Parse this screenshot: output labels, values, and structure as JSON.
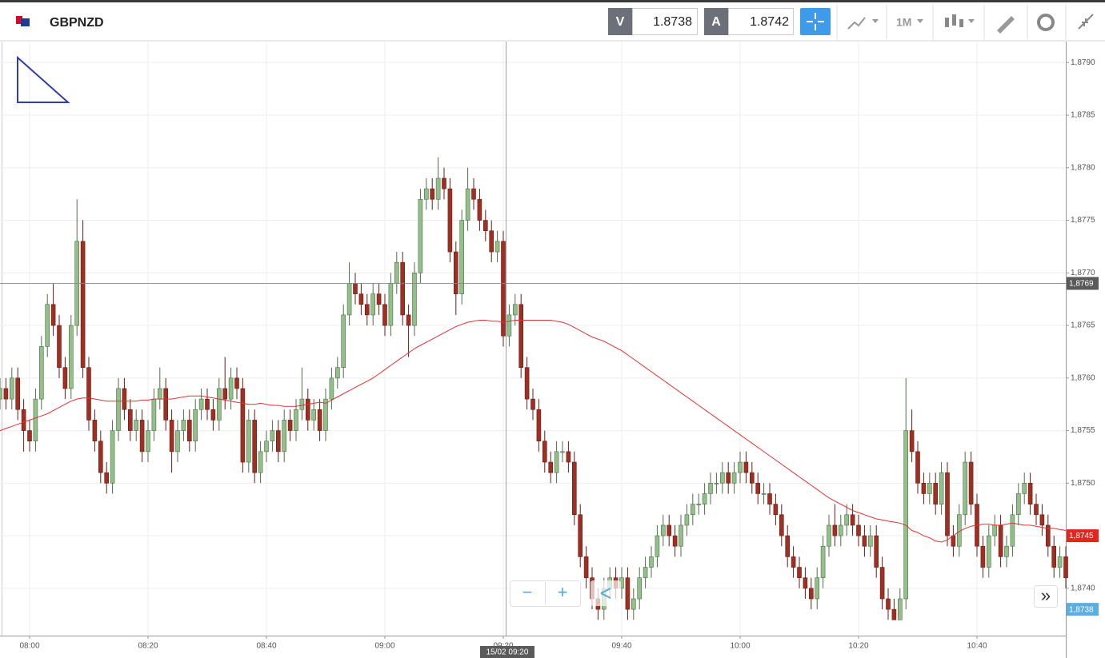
{
  "header": {
    "symbol": "GBPNZD",
    "bid_label": "V",
    "bid": "1.8738",
    "ask_label": "A",
    "ask": "1.8742",
    "timeframe": "1M"
  },
  "controls": {
    "zoom_out": "−",
    "zoom_in": "+",
    "expand": "»"
  },
  "chart_data": {
    "type": "candlestick",
    "categories": [
      null,
      null,
      null,
      null,
      null,
      "08:00",
      null,
      null,
      null,
      null,
      null,
      null,
      null,
      null,
      null,
      null,
      null,
      null,
      null,
      null,
      null,
      null,
      null,
      null,
      null,
      "08:20",
      null,
      null,
      null,
      null,
      null,
      null,
      null,
      null,
      null,
      null,
      null,
      null,
      null,
      null,
      null,
      null,
      null,
      null,
      null,
      "08:40",
      null,
      null,
      null,
      null,
      null,
      null,
      null,
      null,
      null,
      null,
      null,
      null,
      null,
      null,
      null,
      null,
      null,
      null,
      null,
      "09:00",
      null,
      null,
      null,
      null,
      null,
      null,
      null,
      null,
      null,
      null,
      null,
      null,
      null,
      null,
      null,
      null,
      null,
      null,
      null,
      "09:20",
      null,
      null,
      null,
      null,
      null,
      null,
      null,
      null,
      null,
      null,
      null,
      null,
      null,
      null,
      null,
      null,
      null,
      null,
      null,
      "09:40",
      null,
      null,
      null,
      null,
      null,
      null,
      null,
      null,
      null,
      null,
      null,
      null,
      null,
      null,
      null,
      null,
      null,
      null,
      null,
      "10:00",
      null,
      null,
      null,
      null,
      null,
      null,
      null,
      null,
      null,
      null,
      null,
      null,
      null,
      null,
      null,
      null,
      null,
      null,
      null,
      "10:20",
      null,
      null,
      null,
      null,
      null,
      null,
      null,
      null,
      null,
      null,
      null,
      null,
      null,
      null,
      null,
      null,
      null,
      null,
      null,
      "10:40",
      null,
      null,
      null,
      null,
      null,
      null,
      null,
      null,
      null,
      null,
      null,
      null,
      null,
      null,
      null
    ],
    "open": [
      1.8758,
      1.8759,
      1.8758,
      1.876,
      1.8757,
      1.8755,
      1.8754,
      1.8758,
      1.8763,
      1.8767,
      1.8765,
      1.8761,
      1.8759,
      1.8765,
      1.8773,
      1.8761,
      1.8756,
      1.8754,
      1.8751,
      1.875,
      1.8755,
      1.8759,
      1.8757,
      1.8755,
      1.8756,
      1.8753,
      1.8755,
      1.8758,
      1.8759,
      1.8756,
      1.8753,
      1.8755,
      1.8756,
      1.8754,
      1.8757,
      1.8758,
      1.8757,
      1.8756,
      1.8759,
      1.8758,
      1.876,
      1.8759,
      1.8752,
      1.8756,
      1.8751,
      1.8753,
      1.8754,
      1.8755,
      1.8753,
      1.8756,
      1.8755,
      1.8757,
      1.8758,
      1.8756,
      1.8757,
      1.8755,
      1.8758,
      1.876,
      1.8761,
      1.8766,
      1.8769,
      1.8768,
      1.8767,
      1.8766,
      1.8768,
      1.8767,
      1.8765,
      1.8769,
      1.8771,
      1.8766,
      1.8765,
      1.877,
      1.8777,
      1.8778,
      1.8777,
      1.8779,
      1.8778,
      1.8772,
      1.8768,
      1.8775,
      1.8778,
      1.8777,
      1.8775,
      1.8774,
      1.8772,
      1.8773,
      1.8764,
      1.8766,
      1.8767,
      1.8761,
      1.8758,
      1.8757,
      1.8754,
      1.8752,
      1.8751,
      1.8753,
      1.8753,
      1.8752,
      1.8747,
      1.8743,
      1.8741,
      1.8739,
      1.8738,
      1.874,
      1.8741,
      1.874,
      1.8741,
      1.8738,
      1.8739,
      1.8741,
      1.8742,
      1.8743,
      1.8745,
      1.8746,
      1.8745,
      1.8744,
      1.8746,
      1.8747,
      1.8748,
      1.8748,
      1.8749,
      1.875,
      1.875,
      1.8751,
      1.875,
      1.8751,
      1.8752,
      1.8751,
      1.875,
      1.8749,
      1.8749,
      1.8748,
      1.8747,
      1.8745,
      1.8743,
      1.8742,
      1.8741,
      1.874,
      1.8739,
      1.8741,
      1.8744,
      1.8746,
      1.8745,
      1.8746,
      1.8747,
      1.8746,
      1.8745,
      1.8744,
      1.8745,
      1.8742,
      1.8739,
      1.8738,
      1.8737,
      1.8739,
      1.8755,
      1.8753,
      1.875,
      1.8749,
      1.875,
      1.8748,
      1.8751,
      1.8745,
      1.8744,
      1.8747,
      1.8752,
      1.8748,
      1.8744,
      1.8742,
      1.8745,
      1.8746,
      1.8743,
      1.8744,
      1.8747,
      1.8749,
      1.875,
      1.8748,
      1.8747,
      1.8746,
      1.8744,
      1.8742,
      1.8743
    ],
    "high": [
      1.876,
      1.876,
      1.8761,
      1.8761,
      1.8758,
      1.8756,
      1.8759,
      1.8764,
      1.8768,
      1.8769,
      1.8766,
      1.8762,
      1.8766,
      1.8777,
      1.8775,
      1.8762,
      1.8757,
      1.8755,
      1.8752,
      1.8756,
      1.876,
      1.876,
      1.8758,
      1.8757,
      1.8757,
      1.8756,
      1.8759,
      1.8761,
      1.876,
      1.8757,
      1.8756,
      1.8757,
      1.8757,
      1.8758,
      1.8759,
      1.8759,
      1.8758,
      1.876,
      1.8762,
      1.8761,
      1.8761,
      1.876,
      1.8757,
      1.8757,
      1.8754,
      1.8755,
      1.8756,
      1.8756,
      1.8757,
      1.8757,
      1.8758,
      1.8761,
      1.8759,
      1.8758,
      1.8758,
      1.8759,
      1.8761,
      1.8762,
      1.8767,
      1.8771,
      1.877,
      1.8769,
      1.8768,
      1.8769,
      1.8769,
      1.8768,
      1.877,
      1.8772,
      1.8772,
      1.8767,
      1.8771,
      1.8778,
      1.8779,
      1.8779,
      1.8781,
      1.878,
      1.8779,
      1.8773,
      1.8776,
      1.878,
      1.8779,
      1.8778,
      1.8776,
      1.8775,
      1.8774,
      1.8774,
      1.8767,
      1.8768,
      1.8768,
      1.8762,
      1.8759,
      1.8758,
      1.8755,
      1.8753,
      1.8754,
      1.8754,
      1.8754,
      1.8753,
      1.8748,
      1.8744,
      1.8742,
      1.874,
      1.8741,
      1.8742,
      1.8742,
      1.8742,
      1.8742,
      1.874,
      1.8742,
      1.8743,
      1.8744,
      1.8746,
      1.8747,
      1.8747,
      1.8746,
      1.8747,
      1.8748,
      1.8749,
      1.8749,
      1.875,
      1.8751,
      1.8751,
      1.8752,
      1.8752,
      1.8752,
      1.8753,
      1.8753,
      1.8752,
      1.8751,
      1.875,
      1.875,
      1.8749,
      1.8748,
      1.8746,
      1.8744,
      1.8743,
      1.8742,
      1.8741,
      1.8742,
      1.8745,
      1.8747,
      1.8748,
      1.8747,
      1.8748,
      1.8748,
      1.8747,
      1.8746,
      1.8746,
      1.8746,
      1.8743,
      1.874,
      1.8739,
      1.874,
      1.876,
      1.8757,
      1.8754,
      1.8751,
      1.8751,
      1.8751,
      1.8752,
      1.8752,
      1.8746,
      1.8748,
      1.8753,
      1.8753,
      1.8749,
      1.8745,
      1.8746,
      1.8747,
      1.8747,
      1.8745,
      1.8748,
      1.875,
      1.8751,
      1.8751,
      1.8749,
      1.8748,
      1.8747,
      1.8745,
      1.8744,
      1.8744
    ],
    "low": [
      1.8757,
      1.8757,
      1.8757,
      1.8756,
      1.8753,
      1.8753,
      1.8753,
      1.8757,
      1.8762,
      1.8764,
      1.876,
      1.8758,
      1.8758,
      1.8764,
      1.876,
      1.8755,
      1.8753,
      1.875,
      1.8749,
      1.8749,
      1.8754,
      1.8756,
      1.8754,
      1.8754,
      1.8752,
      1.8752,
      1.8754,
      1.8757,
      1.8755,
      1.8751,
      1.8752,
      1.8754,
      1.8753,
      1.8753,
      1.8756,
      1.8756,
      1.8755,
      1.8755,
      1.8757,
      1.8757,
      1.8758,
      1.8751,
      1.8751,
      1.875,
      1.875,
      1.8752,
      1.8753,
      1.8752,
      1.8752,
      1.8754,
      1.8754,
      1.8756,
      1.8755,
      1.8755,
      1.8754,
      1.8754,
      1.8757,
      1.8759,
      1.876,
      1.8765,
      1.8767,
      1.8766,
      1.8765,
      1.8765,
      1.8766,
      1.8764,
      1.8764,
      1.8768,
      1.8765,
      1.8762,
      1.8764,
      1.8769,
      1.8776,
      1.8776,
      1.8776,
      1.8777,
      1.8771,
      1.8766,
      1.8767,
      1.8774,
      1.8776,
      1.8774,
      1.8773,
      1.8771,
      1.8771,
      1.8763,
      1.8763,
      1.8765,
      1.876,
      1.8757,
      1.8756,
      1.8753,
      1.8751,
      1.875,
      1.875,
      1.8752,
      1.8751,
      1.8746,
      1.8742,
      1.874,
      1.8738,
      1.8737,
      1.8737,
      1.8739,
      1.8739,
      1.8739,
      1.8737,
      1.8737,
      1.8738,
      1.874,
      1.8741,
      1.8742,
      1.8744,
      1.8744,
      1.8743,
      1.8743,
      1.8745,
      1.8746,
      1.8747,
      1.8747,
      1.8748,
      1.8749,
      1.8749,
      1.8749,
      1.8749,
      1.875,
      1.875,
      1.8749,
      1.8748,
      1.8748,
      1.8747,
      1.8746,
      1.8744,
      1.8742,
      1.8741,
      1.874,
      1.8739,
      1.8738,
      1.8738,
      1.874,
      1.8743,
      1.8744,
      1.8744,
      1.8745,
      1.8745,
      1.8744,
      1.8743,
      1.8743,
      1.8741,
      1.8738,
      1.8737,
      1.8737,
      1.8737,
      1.8738,
      1.8752,
      1.8749,
      1.8748,
      1.8748,
      1.8747,
      1.8747,
      1.8744,
      1.8743,
      1.8743,
      1.8746,
      1.8747,
      1.8743,
      1.8741,
      1.8741,
      1.8744,
      1.8742,
      1.8742,
      1.8743,
      1.8746,
      1.8748,
      1.8747,
      1.8746,
      1.8745,
      1.8743,
      1.8741,
      1.8741,
      1.874
    ],
    "close": [
      1.8759,
      1.8758,
      1.876,
      1.8757,
      1.8755,
      1.8754,
      1.8758,
      1.8763,
      1.8767,
      1.8765,
      1.8761,
      1.8759,
      1.8765,
      1.8773,
      1.8761,
      1.8756,
      1.8754,
      1.8751,
      1.875,
      1.8755,
      1.8759,
      1.8757,
      1.8755,
      1.8756,
      1.8753,
      1.8755,
      1.8758,
      1.8759,
      1.8756,
      1.8753,
      1.8755,
      1.8756,
      1.8754,
      1.8757,
      1.8758,
      1.8757,
      1.8756,
      1.8759,
      1.8758,
      1.876,
      1.8759,
      1.8752,
      1.8756,
      1.8751,
      1.8753,
      1.8754,
      1.8755,
      1.8753,
      1.8756,
      1.8755,
      1.8757,
      1.8758,
      1.8756,
      1.8757,
      1.8755,
      1.8758,
      1.876,
      1.8761,
      1.8766,
      1.8769,
      1.8768,
      1.8767,
      1.8766,
      1.8768,
      1.8767,
      1.8765,
      1.8769,
      1.8771,
      1.8766,
      1.8765,
      1.877,
      1.8777,
      1.8778,
      1.8777,
      1.8779,
      1.8778,
      1.8772,
      1.8768,
      1.8775,
      1.8778,
      1.8777,
      1.8775,
      1.8774,
      1.8772,
      1.8773,
      1.8764,
      1.8766,
      1.8767,
      1.8761,
      1.8758,
      1.8757,
      1.8754,
      1.8752,
      1.8751,
      1.8753,
      1.8753,
      1.8752,
      1.8747,
      1.8743,
      1.8741,
      1.8739,
      1.8738,
      1.874,
      1.8741,
      1.874,
      1.8741,
      1.8738,
      1.8739,
      1.8741,
      1.8742,
      1.8743,
      1.8745,
      1.8746,
      1.8745,
      1.8744,
      1.8746,
      1.8747,
      1.8748,
      1.8748,
      1.8749,
      1.875,
      1.875,
      1.8751,
      1.875,
      1.8751,
      1.8752,
      1.8751,
      1.875,
      1.8749,
      1.8749,
      1.8748,
      1.8747,
      1.8745,
      1.8743,
      1.8742,
      1.8741,
      1.874,
      1.8739,
      1.8741,
      1.8744,
      1.8746,
      1.8745,
      1.8746,
      1.8747,
      1.8746,
      1.8745,
      1.8744,
      1.8745,
      1.8742,
      1.8739,
      1.8738,
      1.8737,
      1.8739,
      1.8755,
      1.8753,
      1.875,
      1.8749,
      1.875,
      1.8748,
      1.8751,
      1.8745,
      1.8744,
      1.8747,
      1.8752,
      1.8748,
      1.8744,
      1.8742,
      1.8745,
      1.8746,
      1.8743,
      1.8744,
      1.8747,
      1.8749,
      1.875,
      1.8748,
      1.8747,
      1.8746,
      1.8744,
      1.8742,
      1.8743,
      1.8741
    ],
    "up_color": "#93c08a",
    "down_color": "#9e2f22",
    "moving_average": {
      "color": "#e03232",
      "values": [
        1.8755,
        1.87552,
        1.87554,
        1.87556,
        1.87558,
        1.8756,
        1.87562,
        1.87564,
        1.87566,
        1.87569,
        1.87572,
        1.87575,
        1.87578,
        1.8758,
        1.87581,
        1.87581,
        1.8758,
        1.87579,
        1.87578,
        1.87578,
        1.87578,
        1.87578,
        1.87578,
        1.87578,
        1.87579,
        1.87579,
        1.8758,
        1.8758,
        1.8758,
        1.8758,
        1.87581,
        1.87582,
        1.87583,
        1.87583,
        1.87583,
        1.87582,
        1.87581,
        1.8758,
        1.87579,
        1.87578,
        1.87577,
        1.87576,
        1.87575,
        1.87575,
        1.87576,
        1.87575,
        1.87574,
        1.87574,
        1.87573,
        1.87573,
        1.87573,
        1.87574,
        1.87575,
        1.87576,
        1.87577,
        1.87576,
        1.87579,
        1.87582,
        1.87585,
        1.87588,
        1.87591,
        1.87594,
        1.87597,
        1.876,
        1.87604,
        1.87608,
        1.87612,
        1.87616,
        1.8762,
        1.87624,
        1.87628,
        1.87631,
        1.87634,
        1.87637,
        1.8764,
        1.87643,
        1.87646,
        1.87649,
        1.87651,
        1.87653,
        1.87654,
        1.87655,
        1.87655,
        1.87654,
        1.87654,
        1.87653,
        1.87654,
        1.87655,
        1.87655,
        1.87655,
        1.87655,
        1.87655,
        1.87655,
        1.87655,
        1.87654,
        1.87653,
        1.87651,
        1.87648,
        1.87645,
        1.87642,
        1.87639,
        1.87637,
        1.87635,
        1.87632,
        1.87629,
        1.87626,
        1.87622,
        1.87618,
        1.87614,
        1.8761,
        1.87606,
        1.87602,
        1.87598,
        1.87594,
        1.8759,
        1.87586,
        1.87582,
        1.87578,
        1.87574,
        1.8757,
        1.87566,
        1.87562,
        1.87558,
        1.87554,
        1.8755,
        1.87546,
        1.87542,
        1.87538,
        1.87534,
        1.8753,
        1.87526,
        1.87522,
        1.87518,
        1.87514,
        1.8751,
        1.87506,
        1.87502,
        1.87498,
        1.87494,
        1.8749,
        1.87486,
        1.87483,
        1.8748,
        1.87477,
        1.87474,
        1.87472,
        1.8747,
        1.87468,
        1.87466,
        1.87465,
        1.87464,
        1.87463,
        1.87462,
        1.8746,
        1.87455,
        1.87453,
        1.8745,
        1.87448,
        1.87445,
        1.87444,
        1.87446,
        1.8745,
        1.87454,
        1.87457,
        1.87459,
        1.8746,
        1.87461,
        1.87461,
        1.8746,
        1.8746,
        1.87461,
        1.87462,
        1.87461,
        1.8746,
        1.8746,
        1.87459,
        1.87458,
        1.87457,
        1.87457,
        1.87456,
        1.87455
      ]
    },
    "ylim": [
      1.87355,
      1.8792
    ],
    "yticks": [
      {
        "value": 1.874,
        "label": "1,8740"
      },
      {
        "value": 1.8745,
        "label": "1,8745"
      },
      {
        "value": 1.875,
        "label": "1,8750"
      },
      {
        "value": 1.8755,
        "label": "1,8755"
      },
      {
        "value": 1.876,
        "label": "1,8760"
      },
      {
        "value": 1.8765,
        "label": "1,8765"
      },
      {
        "value": 1.877,
        "label": "1,8770"
      },
      {
        "value": 1.8775,
        "label": "1,8775"
      },
      {
        "value": 1.878,
        "label": "1,8780"
      },
      {
        "value": 1.8785,
        "label": "1,8785"
      },
      {
        "value": 1.879,
        "label": "1,8790"
      }
    ],
    "grid": true,
    "price_tags": [
      {
        "value": 1.8769,
        "label": "1,8769",
        "color": "#5a5a5a"
      },
      {
        "value": 1.8745,
        "label": "1,8745",
        "color": "#e8231c"
      },
      {
        "value": 1.8738,
        "label": "1,8738",
        "color": "#5aafe0"
      }
    ],
    "crosshair_label": "15/02 09:20"
  }
}
